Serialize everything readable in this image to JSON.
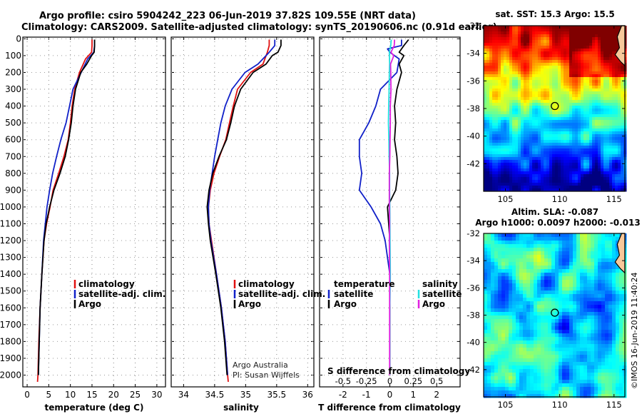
{
  "figure": {
    "title_line1": "Argo profile: csiro 5904242_223 06-Jun-2019 37.82S 109.55E (NRT data)",
    "title_line2": "Climatology: CARS2009. Satellite-adjusted climatology: synTS_20190606.nc (0.91d earlier)",
    "timestamp": "©IMOS 16-Jun-2019 11:40:24",
    "credit_line1": "Argo Australia",
    "credit_line2": "PI: Susan Wijffels"
  },
  "colors": {
    "climatology": "#e01010",
    "satellite": "#1020c8",
    "argo": "#000000",
    "cyan": "#22e0e0",
    "magenta": "#e020e0"
  },
  "depth_ticks": [
    "0",
    "100",
    "200",
    "300",
    "400",
    "500",
    "600",
    "700",
    "800",
    "900",
    "1000",
    "1100",
    "1200",
    "1300",
    "1400",
    "1500",
    "1600",
    "1700",
    "1800",
    "1900",
    "2000"
  ],
  "chart_data": [
    {
      "type": "line",
      "id": "temperature",
      "xlabel": "temperature (deg C)",
      "xlim": [
        -1,
        32
      ],
      "xticks": [
        "0",
        "5",
        "10",
        "15",
        "20",
        "25",
        "30"
      ],
      "xtick_values": [
        0,
        5,
        10,
        15,
        20,
        25,
        30
      ],
      "ylim": [
        2070,
        -10
      ],
      "y_reversed": true,
      "legend": [
        "climatology",
        "satellite-adj. clim.",
        "Argo"
      ],
      "series": [
        {
          "name": "climatology",
          "color_key": "climatology",
          "depth": [
            5,
            40,
            80,
            120,
            200,
            300,
            400,
            500,
            600,
            700,
            800,
            900,
            1000,
            1100,
            1200,
            1400,
            1600,
            1800,
            2000,
            2040
          ],
          "values": [
            15.0,
            15.0,
            14.9,
            13.5,
            12.1,
            11.0,
            10.4,
            10.0,
            9.5,
            8.5,
            7.3,
            6.0,
            5.3,
            4.5,
            3.9,
            3.4,
            3.0,
            2.7,
            2.5,
            2.4
          ]
        },
        {
          "name": "satellite-adj. clim.",
          "color_key": "satellite",
          "depth": [
            5,
            40,
            80,
            120,
            200,
            300,
            400,
            500,
            600,
            700,
            800,
            900,
            1000,
            1100,
            1200,
            1400,
            1600,
            1800,
            2000
          ],
          "values": [
            15.6,
            15.6,
            15.4,
            14.0,
            12.5,
            10.6,
            9.8,
            9.0,
            7.8,
            6.8,
            5.9,
            5.2,
            4.6,
            4.2,
            3.8,
            3.4,
            3.0,
            2.8,
            2.6
          ]
        },
        {
          "name": "Argo",
          "color_key": "argo",
          "depth": [
            5,
            40,
            80,
            100,
            150,
            200,
            300,
            400,
            500,
            600,
            700,
            800,
            900,
            1000,
            1100,
            1200,
            1400,
            1600,
            1800,
            2000
          ],
          "values": [
            15.6,
            15.6,
            15.5,
            14.9,
            13.8,
            12.4,
            11.2,
            10.6,
            10.2,
            9.6,
            8.8,
            7.6,
            6.2,
            5.2,
            4.4,
            3.9,
            3.4,
            3.0,
            2.8,
            2.6
          ]
        }
      ]
    },
    {
      "type": "line",
      "id": "salinity",
      "xlabel": "salinity",
      "xlim": [
        33.8,
        36.1
      ],
      "xticks": [
        "34",
        "34.5",
        "35",
        "35.5",
        "36"
      ],
      "xtick_values": [
        34,
        34.5,
        35,
        35.5,
        36
      ],
      "ylim": [
        2070,
        -10
      ],
      "y_reversed": true,
      "legend": [
        "climatology",
        "satellite-adj. clim.",
        "Argo"
      ],
      "series": [
        {
          "name": "climatology",
          "color_key": "climatology",
          "depth": [
            5,
            40,
            80,
            150,
            200,
            300,
            400,
            500,
            600,
            700,
            800,
            900,
            1000,
            1100,
            1200,
            1400,
            1600,
            1800,
            2000,
            2040
          ],
          "values": [
            35.38,
            35.38,
            35.35,
            35.28,
            35.08,
            34.87,
            34.8,
            34.74,
            34.68,
            34.58,
            34.49,
            34.43,
            34.4,
            34.41,
            34.45,
            34.53,
            34.61,
            34.67,
            34.71,
            34.72
          ]
        },
        {
          "name": "satellite-adj. clim.",
          "color_key": "satellite",
          "depth": [
            5,
            40,
            80,
            150,
            200,
            300,
            400,
            500,
            600,
            700,
            800,
            900,
            1000,
            1100,
            1200,
            1400,
            1600,
            1800,
            2000
          ],
          "values": [
            35.47,
            35.47,
            35.38,
            35.2,
            34.99,
            34.78,
            34.67,
            34.6,
            34.55,
            34.5,
            34.46,
            34.42,
            34.4,
            34.41,
            34.44,
            34.53,
            34.61,
            34.67,
            34.71
          ]
        },
        {
          "name": "Argo",
          "color_key": "argo",
          "depth": [
            5,
            40,
            80,
            100,
            150,
            200,
            300,
            400,
            500,
            600,
            700,
            800,
            900,
            1000,
            1100,
            1200,
            1400,
            1600,
            1800,
            2000
          ],
          "values": [
            35.57,
            35.57,
            35.52,
            35.43,
            35.33,
            35.12,
            34.92,
            34.82,
            34.76,
            34.69,
            34.57,
            34.47,
            34.41,
            34.38,
            34.4,
            34.43,
            34.52,
            34.6,
            34.66,
            34.7
          ]
        }
      ]
    },
    {
      "type": "line",
      "id": "difference",
      "xlabel": "T difference from climatology",
      "secondary_label": "S difference from climatology",
      "xlim": [
        -3,
        3
      ],
      "xticks": [
        "-2",
        "-1",
        "0",
        "1",
        "2"
      ],
      "xtick_values": [
        -2,
        -1,
        0,
        1,
        2
      ],
      "secondary_ticks": [
        "-0.5",
        "-0.25",
        "0",
        "0.25",
        "0.5"
      ],
      "secondary_tick_values": [
        -0.5,
        -0.25,
        0,
        0.25,
        0.5
      ],
      "secondary_scale": 4,
      "ylim": [
        2070,
        -10
      ],
      "y_reversed": true,
      "legend_left_title": "temperature",
      "legend_right_title": "salinity",
      "legend_left": [
        "satellite",
        "Argo"
      ],
      "legend_right": [
        "satellite",
        "Argo"
      ],
      "series": [
        {
          "name": "T satellite",
          "color_key": "satellite",
          "depth": [
            5,
            40,
            60,
            80,
            120,
            200,
            300,
            400,
            500,
            600,
            700,
            800,
            900,
            1000,
            1100,
            1200,
            1300,
            1400,
            1500,
            1600,
            1800,
            2000
          ],
          "values": [
            0.5,
            0.5,
            -0.1,
            0.0,
            0.4,
            0.3,
            -0.4,
            -0.6,
            -0.9,
            -1.3,
            -1.3,
            -1.2,
            -1.3,
            -0.8,
            -0.4,
            -0.2,
            -0.1,
            0.0,
            0.0,
            0.0,
            0.0,
            0.0
          ]
        },
        {
          "name": "T Argo",
          "color_key": "argo",
          "depth": [
            5,
            40,
            60,
            80,
            100,
            150,
            200,
            300,
            400,
            500,
            600,
            700,
            800,
            900,
            1000,
            1100,
            1200,
            1400,
            1600,
            1800,
            2000
          ],
          "values": [
            0.8,
            0.6,
            0.5,
            0.4,
            0.6,
            0.4,
            0.5,
            0.3,
            0.2,
            0.25,
            0.2,
            0.3,
            0.35,
            0.25,
            -0.1,
            -0.05,
            0.0,
            0.0,
            0.0,
            0.0,
            0.0
          ]
        },
        {
          "name": "S satellite",
          "color_key": "cyan",
          "depth": [
            5,
            40,
            80,
            150,
            200,
            300,
            400,
            500,
            600,
            700,
            800,
            900,
            1000,
            1200,
            1400,
            1600,
            1800,
            2000
          ],
          "values": [
            0.06,
            0.04,
            -0.02,
            -0.01,
            -0.02,
            -0.03,
            -0.05,
            -0.06,
            -0.04,
            -0.03,
            -0.01,
            -0.01,
            0.0,
            0.01,
            0.02,
            0.0,
            0.0,
            0.0
          ]
        },
        {
          "name": "S Argo",
          "color_key": "magenta",
          "depth": [
            5,
            40,
            80,
            100,
            150,
            200,
            300,
            400,
            500,
            600,
            700,
            800,
            900,
            1000,
            1100,
            1200,
            1400,
            1600,
            1800,
            2000
          ],
          "values": [
            0.2,
            0.19,
            0.05,
            0.17,
            0.03,
            0.04,
            0.05,
            0.02,
            0.02,
            0.01,
            0.0,
            -0.02,
            -0.02,
            -0.02,
            -0.01,
            -0.02,
            -0.01,
            -0.01,
            -0.01,
            -0.01
          ]
        }
      ]
    },
    {
      "type": "heatmap",
      "id": "sst_map",
      "title": "sat. SST: 15.3 Argo: 15.5",
      "xlim": [
        103,
        116
      ],
      "ylim": [
        -44,
        -32
      ],
      "xticks": [
        "105",
        "110",
        "115"
      ],
      "xtick_values": [
        105,
        110,
        115
      ],
      "yticks": [
        "-32",
        "-34",
        "-36",
        "-38",
        "-40",
        "-42"
      ],
      "ytick_values": [
        -32,
        -34,
        -36,
        -38,
        -40,
        -42
      ],
      "float_position": [
        109.55,
        -37.82
      ]
    },
    {
      "type": "heatmap",
      "id": "sla_map",
      "title_line1": "Altim. SLA: -0.087",
      "title_line2": "Argo h1000: 0.0097 h2000: -0.013",
      "xlim": [
        103,
        116
      ],
      "ylim": [
        -44,
        -32
      ],
      "xticks": [
        "105",
        "110",
        "115"
      ],
      "xtick_values": [
        105,
        110,
        115
      ],
      "yticks": [
        "-32",
        "-34",
        "-36",
        "-38",
        "-40",
        "-42"
      ],
      "ytick_values": [
        -32,
        -34,
        -36,
        -38,
        -40,
        -42
      ],
      "float_position": [
        109.55,
        -37.82
      ]
    }
  ]
}
